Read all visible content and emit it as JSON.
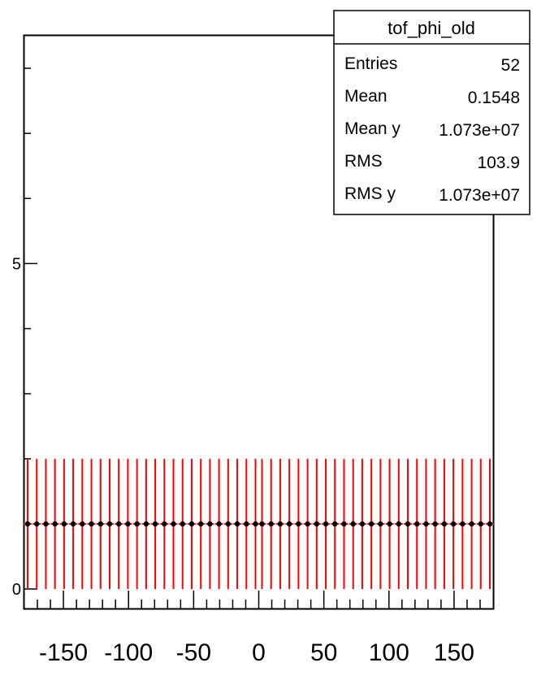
{
  "stats": {
    "title": "tof_phi_old",
    "rows": [
      {
        "label": "Entries",
        "value": "52"
      },
      {
        "label": "Mean",
        "value": "0.1548"
      },
      {
        "label": "Mean y",
        "value": "1.073e+07"
      },
      {
        "label": "RMS",
        "value": "103.9"
      },
      {
        "label": "RMS y",
        "value": "1.073e+07"
      }
    ]
  },
  "chart_data": {
    "type": "scatter",
    "title": "",
    "xlabel": "",
    "ylabel": "",
    "xlim": [
      -180,
      180
    ],
    "ylim": [
      -0.3,
      8.5
    ],
    "grid": false,
    "x_ticks": [
      -150,
      -100,
      -50,
      0,
      50,
      100,
      150
    ],
    "x_tick_labels": [
      "-150",
      "-100",
      "-50",
      "0",
      "50",
      "100",
      "150"
    ],
    "y_ticks": [
      0,
      5
    ],
    "y_tick_labels": [
      "0",
      "5"
    ],
    "series": [
      {
        "color": "#000000",
        "error_color": "#ff0000",
        "x": [
          -177.5,
          -170.5,
          -163.5,
          -156.5,
          -149.5,
          -142.5,
          -135.5,
          -128.5,
          -121.5,
          -114.5,
          -107.5,
          -100.5,
          -93.5,
          -86.5,
          -79.5,
          -72.5,
          -65.5,
          -58.5,
          -51.5,
          -44.5,
          -37.5,
          -30.5,
          -23.5,
          -16.5,
          -9.5,
          -2.5,
          2.5,
          9.5,
          16.5,
          23.5,
          30.5,
          37.5,
          44.5,
          51.5,
          58.5,
          65.5,
          72.5,
          79.5,
          86.5,
          93.5,
          100.5,
          107.5,
          114.5,
          121.5,
          128.5,
          135.5,
          142.5,
          149.5,
          156.5,
          163.5,
          170.5,
          177.5
        ],
        "y": [
          1.0,
          1.0,
          1.0,
          1.0,
          1.0,
          1.0,
          1.0,
          1.0,
          1.0,
          1.0,
          1.0,
          1.0,
          1.0,
          1.0,
          1.0,
          1.0,
          1.0,
          1.0,
          1.0,
          1.0,
          1.0,
          1.0,
          1.0,
          1.0,
          1.0,
          1.0,
          1.0,
          1.0,
          1.0,
          1.0,
          1.0,
          1.0,
          1.0,
          1.0,
          1.0,
          1.0,
          1.0,
          1.0,
          1.0,
          1.0,
          1.0,
          1.0,
          1.0,
          1.0,
          1.0,
          1.0,
          1.0,
          1.0,
          1.0,
          1.0,
          1.0,
          1.0
        ],
        "y_err": [
          1.0,
          1.0,
          1.0,
          1.0,
          1.0,
          1.0,
          1.0,
          1.0,
          1.0,
          1.0,
          1.0,
          1.0,
          1.0,
          1.0,
          1.0,
          1.0,
          1.0,
          1.0,
          1.0,
          1.0,
          1.0,
          1.0,
          1.0,
          1.0,
          1.0,
          1.0,
          1.0,
          1.0,
          1.0,
          1.0,
          1.0,
          1.0,
          1.0,
          1.0,
          1.0,
          1.0,
          1.0,
          1.0,
          1.0,
          1.0,
          1.0,
          1.0,
          1.0,
          1.0,
          1.0,
          1.0,
          1.0,
          1.0,
          1.0,
          1.0,
          1.0,
          1.0
        ]
      }
    ]
  }
}
